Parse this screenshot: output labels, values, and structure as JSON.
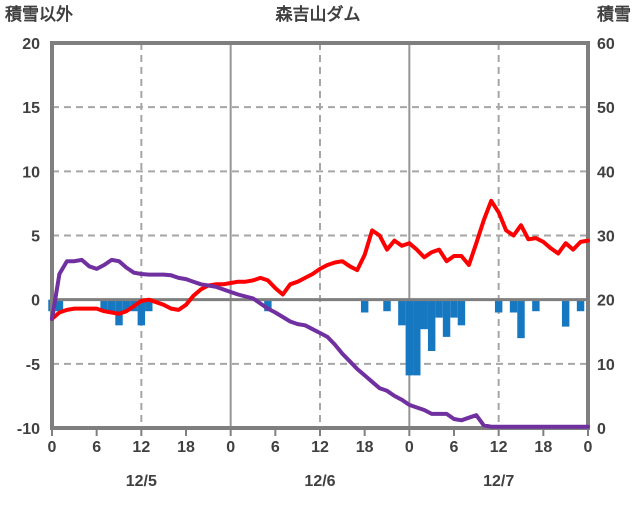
{
  "header": {
    "title": "森吉山ダム",
    "left_axis_label": "積雪以外",
    "right_axis_label": "積雪"
  },
  "chart_data": {
    "type": "combo",
    "title": "森吉山ダム",
    "left_axis": {
      "label": "積雪以外",
      "min": -10,
      "max": 20,
      "ticks": [
        20,
        15,
        10,
        5,
        0,
        -5,
        -10
      ],
      "dashed_gridline_values": [
        15,
        10,
        5,
        -5
      ],
      "zero_line": true
    },
    "right_axis": {
      "label": "積雪",
      "min": 0,
      "max": 60,
      "ticks": [
        60,
        50,
        40,
        30,
        20,
        10,
        0
      ]
    },
    "x_axis": {
      "unit": "hour",
      "total_hours": 72,
      "tick_interval_hours": 6,
      "tick_labels": [
        "0",
        "6",
        "12",
        "18",
        "0",
        "6",
        "12",
        "18",
        "0",
        "6",
        "12",
        "18",
        "0"
      ],
      "day_labels": [
        "12/5",
        "12/6",
        "12/7"
      ],
      "solid_gridlines_hours": [
        24,
        48
      ],
      "dashed_gridlines_hours": [
        12,
        36,
        60
      ]
    },
    "colors": {
      "red_line": "#FF0000",
      "purple_line": "#7030A0",
      "blue_bars": "#1778C2",
      "border_gray": "#7F7F7F",
      "grid_gray": "#A6A6A6",
      "day_line_gray": "#969696",
      "text_gray": "#404040"
    },
    "series": [
      {
        "name": "blue-bars",
        "type": "bar",
        "axis": "left",
        "color": "#1778C2",
        "values": [
          -0.9,
          -0.9,
          0,
          0,
          0,
          0,
          0,
          -0.9,
          -0.9,
          -2,
          -0.9,
          -0.9,
          -2,
          -0.9,
          0,
          0,
          0,
          0,
          0,
          0,
          0,
          0,
          0,
          0,
          0,
          0,
          0,
          0,
          0,
          -0.9,
          0,
          0,
          0,
          0,
          0,
          0,
          0,
          0,
          0,
          0,
          0,
          0,
          -1,
          0,
          0,
          -0.9,
          0,
          -2,
          -5.9,
          -5.9,
          -2.3,
          -4,
          -1.4,
          -2.9,
          -1.4,
          -2,
          0,
          0,
          0,
          0,
          -1,
          0,
          -1,
          -3,
          0,
          -0.9,
          0,
          0,
          0,
          -2.1,
          0,
          -0.9
        ]
      },
      {
        "name": "purple-line",
        "type": "line",
        "axis": "right",
        "color": "#7030A0",
        "values": [
          17,
          24,
          26,
          26,
          26.2,
          25.2,
          24.8,
          25.4,
          26.2,
          26,
          25,
          24.2,
          24,
          23.9,
          23.9,
          23.9,
          23.8,
          23.4,
          23.2,
          22.8,
          22.4,
          22.2,
          22,
          21.6,
          21.2,
          20.8,
          20.5,
          20.2,
          19.4,
          18.6,
          18,
          17.3,
          16.6,
          16.2,
          16,
          15.4,
          14.8,
          14.2,
          13,
          11.6,
          10.4,
          9.2,
          8.2,
          7.2,
          6.2,
          5.8,
          5,
          4.4,
          3.6,
          3.2,
          2.8,
          2.2,
          2.2,
          2.2,
          1.4,
          1.2,
          1.6,
          2,
          0.4,
          0.2,
          0.2,
          0.2,
          0.2,
          0.2,
          0.2,
          0.2,
          0.2,
          0.2,
          0.2,
          0.2,
          0.2,
          0.2,
          0.2
        ]
      },
      {
        "name": "red-line",
        "type": "line",
        "axis": "left",
        "color": "#FF0000",
        "values": [
          -1.5,
          -1,
          -0.8,
          -0.7,
          -0.7,
          -0.7,
          -0.7,
          -0.9,
          -1,
          -1.1,
          -0.9,
          -0.5,
          -0.1,
          0,
          -0.2,
          -0.4,
          -0.7,
          -0.8,
          -0.4,
          0.3,
          0.8,
          1.1,
          1.2,
          1.2,
          1.3,
          1.4,
          1.4,
          1.5,
          1.7,
          1.5,
          0.9,
          0.4,
          1.2,
          1.4,
          1.7,
          2,
          2.4,
          2.7,
          2.9,
          3,
          2.6,
          2.3,
          3.5,
          5.4,
          5,
          3.9,
          4.6,
          4.2,
          4.4,
          3.9,
          3.3,
          3.7,
          3.9,
          3,
          3.4,
          3.4,
          2.7,
          4.4,
          6.2,
          7.7,
          6.8,
          5.4,
          5,
          5.8,
          4.7,
          4.8,
          4.5,
          4,
          3.6,
          4.4,
          3.9,
          4.5,
          4.6
        ]
      }
    ]
  }
}
